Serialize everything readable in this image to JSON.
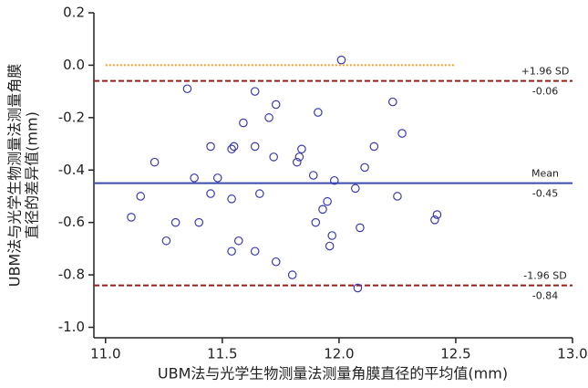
{
  "chart_data": {
    "type": "scatter",
    "x_label": "UBM法与光学生物测量法测量角膜直径的平均值(mm)",
    "y_label": [
      "UBM法与光学生物测量法测量角膜",
      "直径的差异值(mm)"
    ],
    "xlim": [
      10.95,
      13.0
    ],
    "ylim": [
      -1.04,
      0.2
    ],
    "xticks": [
      {
        "value": 11.0,
        "label": "11.0"
      },
      {
        "value": 11.5,
        "label": "11.5"
      },
      {
        "value": 12.0,
        "label": "12.0"
      },
      {
        "value": 12.5,
        "label": "12.5"
      },
      {
        "value": 13.0,
        "label": "13.0"
      }
    ],
    "yticks": [
      0.2,
      {
        "value": 0,
        "label": "0.0"
      },
      {
        "value": -0.2,
        "label": "-0.2"
      },
      {
        "value": -0.4,
        "label": "-0.4"
      },
      {
        "value": -0.6,
        "label": "-0.6"
      },
      {
        "value": -0.8,
        "label": "-0.8"
      },
      {
        "value": -1.0,
        "label": "-1.0"
      }
    ],
    "series": [
      {
        "color": "#3b3bb0",
        "x": [
          11.11,
          11.15,
          11.21,
          11.26,
          11.3,
          11.35,
          11.38,
          11.4,
          11.45,
          11.45,
          11.48,
          11.54,
          11.55,
          11.54,
          11.54,
          11.57,
          11.59,
          11.64,
          11.64,
          11.64,
          11.66,
          11.7,
          11.73,
          11.72,
          11.73,
          11.8,
          11.82,
          11.83,
          11.84,
          11.89,
          11.9,
          11.91,
          11.93,
          11.95,
          11.96,
          11.97,
          11.98,
          12.01,
          12.07,
          12.08,
          12.09,
          12.11,
          12.15,
          12.23,
          12.25,
          12.27,
          12.41,
          12.42
        ],
        "values": [
          -0.58,
          -0.5,
          -0.37,
          -0.67,
          -0.6,
          -0.09,
          -0.43,
          -0.6,
          -0.31,
          -0.49,
          -0.43,
          -0.32,
          -0.31,
          -0.51,
          -0.71,
          -0.67,
          -0.22,
          -0.31,
          -0.1,
          -0.71,
          -0.49,
          -0.2,
          -0.15,
          -0.35,
          -0.75,
          -0.8,
          -0.37,
          -0.35,
          -0.32,
          -0.42,
          -0.6,
          -0.18,
          -0.55,
          -0.52,
          -0.69,
          -0.65,
          -0.44,
          0.02,
          -0.47,
          -0.85,
          -0.62,
          -0.39,
          -0.31,
          -0.14,
          -0.5,
          -0.26,
          -0.59,
          -0.57
        ]
      }
    ],
    "reference_lines": [
      {
        "value": 0,
        "color": "#f39c2a",
        "style": "dotted",
        "x_range": [
          11.0,
          12.5
        ]
      },
      {
        "value": -0.06,
        "label": "+1.96 SD",
        "color": "#9b1c1c",
        "style": "dashed"
      },
      {
        "value": -0.45,
        "label": "Mean",
        "color": "#3b4bb0",
        "style": "solid"
      },
      {
        "value": -0.84,
        "label": "-1.96 SD",
        "color": "#9b1c1c",
        "style": "dashed"
      }
    ]
  }
}
